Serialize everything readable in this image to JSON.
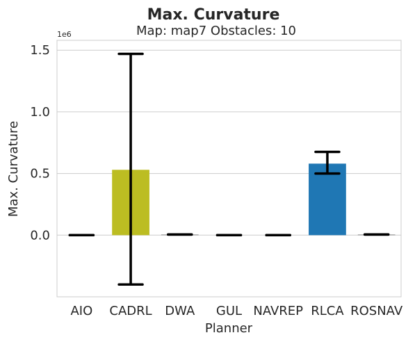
{
  "chart_data": {
    "type": "bar",
    "title": "Max. Curvature",
    "subtitle": "Map: map7 Obstacles: 10",
    "xlabel": "Planner",
    "ylabel": "Max. Curvature",
    "y_offset_label": "1e6",
    "y_scale": 1000000,
    "ylim": [
      -500000,
      1580000
    ],
    "yticks": [
      0.0,
      0.5,
      1.0,
      1.5
    ],
    "ytick_labels": [
      "0.0",
      "0.5",
      "1.0",
      "1.5"
    ],
    "grid": true,
    "categories": [
      "AIO",
      "CADRL",
      "DWA",
      "GUL",
      "NAVREP",
      "RLCA",
      "ROSNAV"
    ],
    "values": [
      0,
      530000,
      5000,
      0,
      0,
      580000,
      5000
    ],
    "err_low": [
      0,
      -400000,
      5000,
      0,
      0,
      500000,
      5000
    ],
    "err_high": [
      0,
      1470000,
      5000,
      0,
      0,
      675000,
      5000
    ],
    "colors": [
      "#808080",
      "#bcbd22",
      "#7f7f7f",
      "#808080",
      "#808080",
      "#1f77b4",
      "#7f7f7f"
    ]
  }
}
